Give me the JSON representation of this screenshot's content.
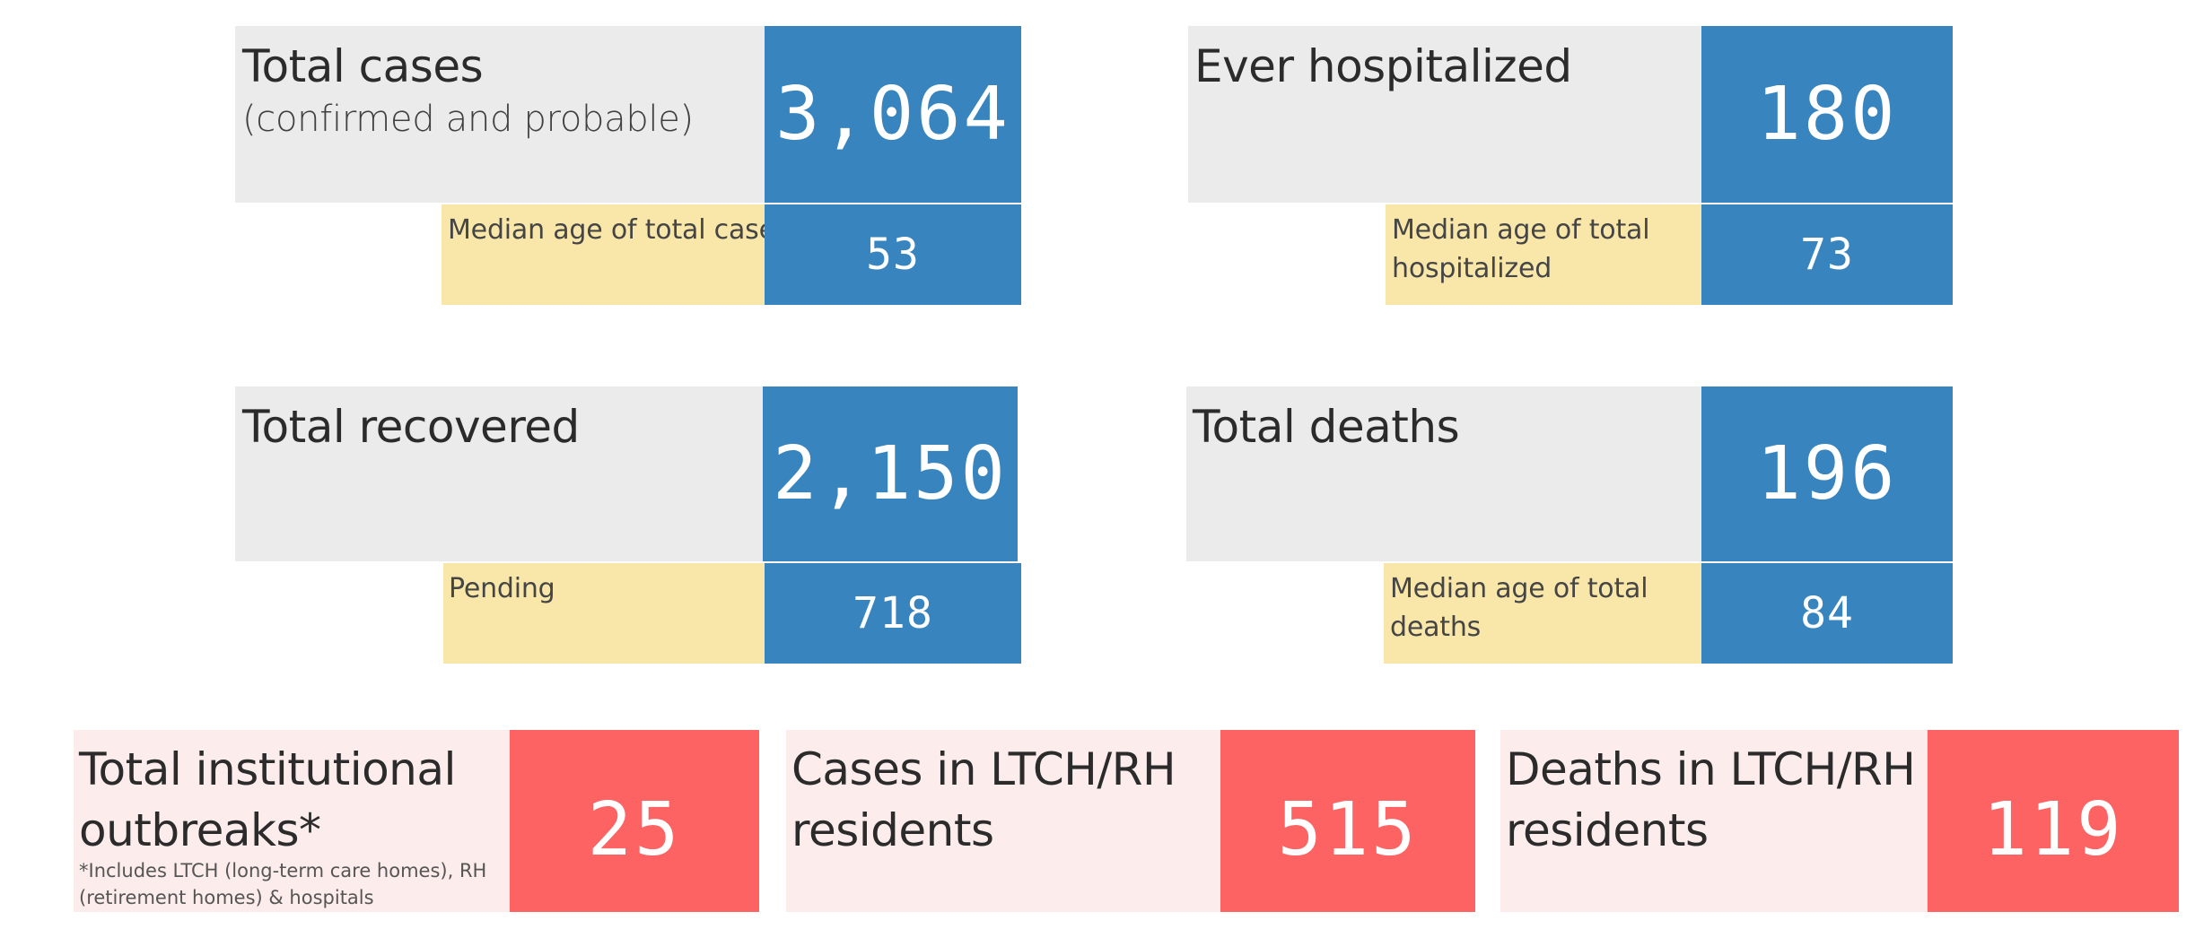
{
  "colors": {
    "grey_panel": "#ebebeb",
    "blue_value": "#3784bf",
    "yellow_label": "#f9e7a9",
    "pink_panel": "#fcecec",
    "red_value": "#fd6363"
  },
  "total_cases": {
    "title": "Total cases",
    "subtitle": "(confirmed and probable)",
    "value": "3,064",
    "median_label": "Median age of total cases",
    "median_value": "53"
  },
  "ever_hospitalized": {
    "title": "Ever hospitalized",
    "value": "180",
    "median_label_line1": "Median age of total",
    "median_label_line2": "hospitalized",
    "median_value": "73"
  },
  "total_recovered": {
    "title": "Total recovered",
    "value": "2,150",
    "pending_label": "Pending",
    "pending_value": "718"
  },
  "total_deaths": {
    "title": "Total deaths",
    "value": "196",
    "median_label_line1": "Median age of total",
    "median_label_line2": "deaths",
    "median_value": "84"
  },
  "institutional_outbreaks": {
    "title_line1": "Total institutional",
    "title_line2": "outbreaks*",
    "footnote_line1": "*Includes LTCH (long-term care homes), RH",
    "footnote_line2": "(retirement homes) & hospitals",
    "value": "25"
  },
  "ltch_cases": {
    "title_line1": "Cases in LTCH/RH",
    "title_line2": "residents",
    "value": "515"
  },
  "ltch_deaths": {
    "title_line1": "Deaths in LTCH/RH",
    "title_line2": "residents",
    "value": "119"
  }
}
